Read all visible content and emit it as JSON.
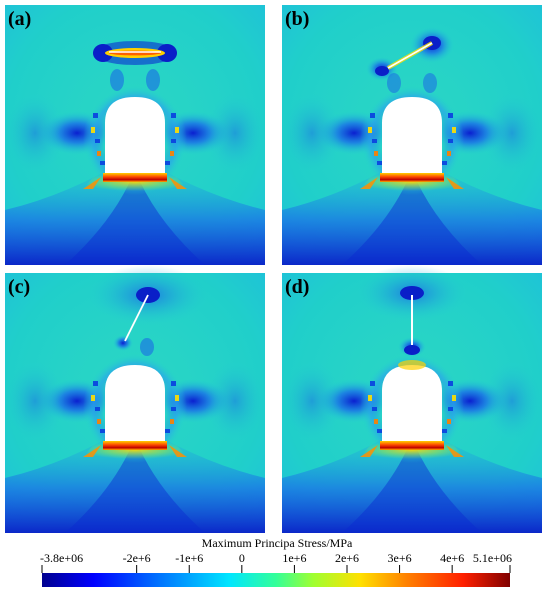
{
  "panels": [
    {
      "label": "(a)",
      "crack": "horizontal"
    },
    {
      "label": "(b)",
      "crack": "inclined-shallow"
    },
    {
      "label": "(c)",
      "crack": "inclined-steep"
    },
    {
      "label": "(d)",
      "crack": "vertical"
    }
  ],
  "colorbar": {
    "title": "Maximum Principa Stress/MPa",
    "ticks": [
      "-3.8e+06",
      "-2e+6",
      "-1e+6",
      "0",
      "1e+6",
      "2e+6",
      "3e+6",
      "4e+6",
      "5.1e+06"
    ],
    "tick_values": [
      -3.8,
      -2,
      -1,
      0,
      1,
      2,
      3,
      4,
      5.1
    ],
    "min": -3.8,
    "max": 5.1,
    "colors": [
      "#00008f",
      "#0000ff",
      "#0073ff",
      "#00e6ff",
      "#33ff99",
      "#a0ff30",
      "#ffe000",
      "#ff8000",
      "#ff2000",
      "#800000"
    ]
  },
  "colors": {
    "field_base": "#22dcc8",
    "compression_deep": "#0a1fc8",
    "compression_mid": "#1a78e8",
    "tension": "#ff3a00",
    "tension_peak": "#b00000",
    "crack": "#ffffff"
  }
}
